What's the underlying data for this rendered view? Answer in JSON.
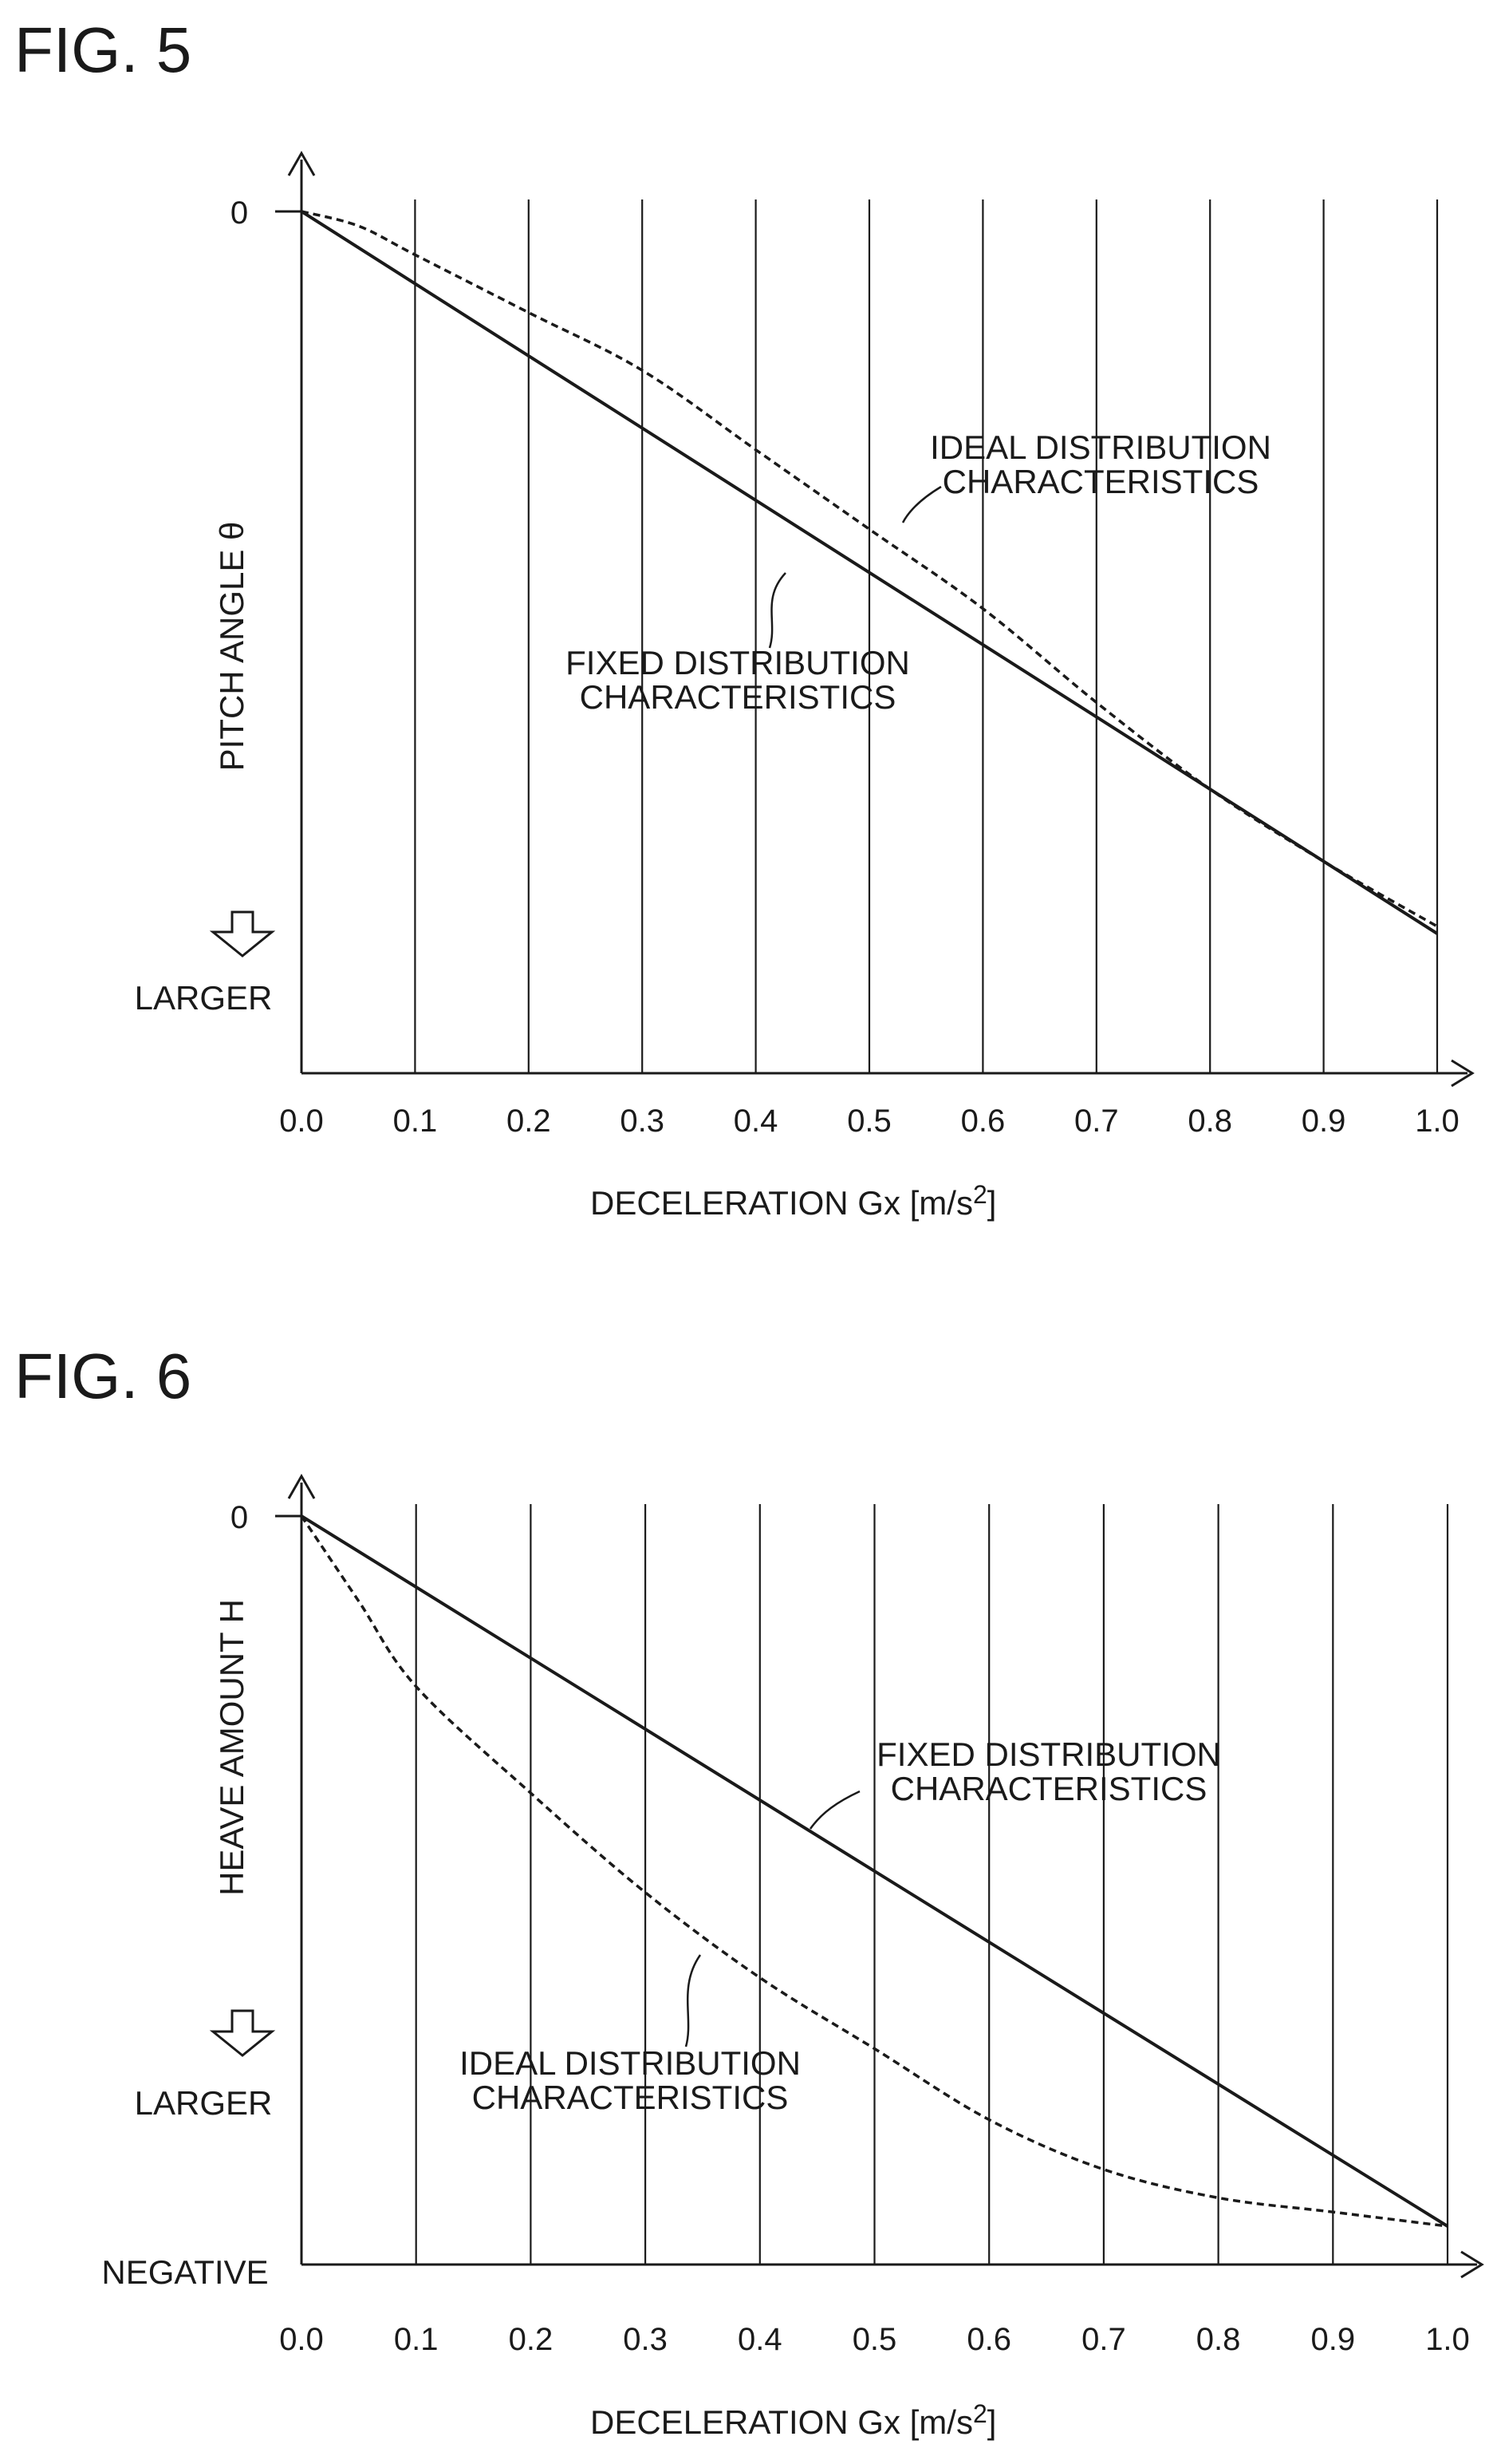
{
  "chart_data": [
    {
      "type": "line",
      "title": "FIG. 5",
      "xlabel": "DECELERATION Gx [m/s",
      "xlabel_sup": "2",
      "xlabel_close": "]",
      "ylabel": "PITCH ANGLE θ",
      "y_zero_label": "0",
      "y_direction_label": "LARGER",
      "xlim": [
        0.0,
        1.0
      ],
      "x_ticks": [
        "0.0",
        "0.1",
        "0.2",
        "0.3",
        "0.4",
        "0.5",
        "0.6",
        "0.7",
        "0.8",
        "0.9",
        "1.0"
      ],
      "grid": "vertical",
      "series": [
        {
          "name": "FIXED DISTRIBUTION CHARACTERISTICS",
          "label_lines": [
            "FIXED DISTRIBUTION",
            "CHARACTERISTICS"
          ],
          "style": "solid",
          "x": [
            0.0,
            1.0
          ],
          "y": [
            0.0,
            -1.0
          ]
        },
        {
          "name": "IDEAL DISTRIBUTION CHARACTERISTICS",
          "label_lines": [
            "IDEAL DISTRIBUTION",
            "CHARACTERISTICS"
          ],
          "style": "dashed",
          "x": [
            0.0,
            0.05,
            0.1,
            0.2,
            0.3,
            0.4,
            0.5,
            0.6,
            0.7,
            0.8,
            0.9,
            1.0
          ],
          "y": [
            0.0,
            -0.02,
            -0.06,
            -0.14,
            -0.22,
            -0.33,
            -0.44,
            -0.55,
            -0.68,
            -0.8,
            -0.9,
            -0.99
          ]
        }
      ]
    },
    {
      "type": "line",
      "title": "FIG. 6",
      "xlabel": "DECELERATION Gx [m/s",
      "xlabel_sup": "2",
      "xlabel_close": "]",
      "ylabel": "HEAVE AMOUNT H",
      "y_zero_label": "0",
      "y_direction_label": "LARGER",
      "y_end_label": "NEGATIVE",
      "xlim": [
        0.0,
        1.0
      ],
      "x_ticks": [
        "0.0",
        "0.1",
        "0.2",
        "0.3",
        "0.4",
        "0.5",
        "0.6",
        "0.7",
        "0.8",
        "0.9",
        "1.0"
      ],
      "grid": "vertical",
      "series": [
        {
          "name": "FIXED DISTRIBUTION CHARACTERISTICS",
          "label_lines": [
            "FIXED DISTRIBUTION",
            "CHARACTERISTICS"
          ],
          "style": "solid",
          "x": [
            0.0,
            1.0
          ],
          "y": [
            0.0,
            -1.0
          ]
        },
        {
          "name": "IDEAL DISTRIBUTION CHARACTERISTICS",
          "label_lines": [
            "IDEAL DISTRIBUTION",
            "CHARACTERISTICS"
          ],
          "style": "dashed",
          "x": [
            0.0,
            0.05,
            0.1,
            0.2,
            0.3,
            0.4,
            0.5,
            0.6,
            0.7,
            0.8,
            0.9,
            1.0
          ],
          "y": [
            0.0,
            -0.12,
            -0.24,
            -0.39,
            -0.53,
            -0.65,
            -0.75,
            -0.85,
            -0.92,
            -0.96,
            -0.98,
            -1.0
          ]
        }
      ]
    }
  ]
}
